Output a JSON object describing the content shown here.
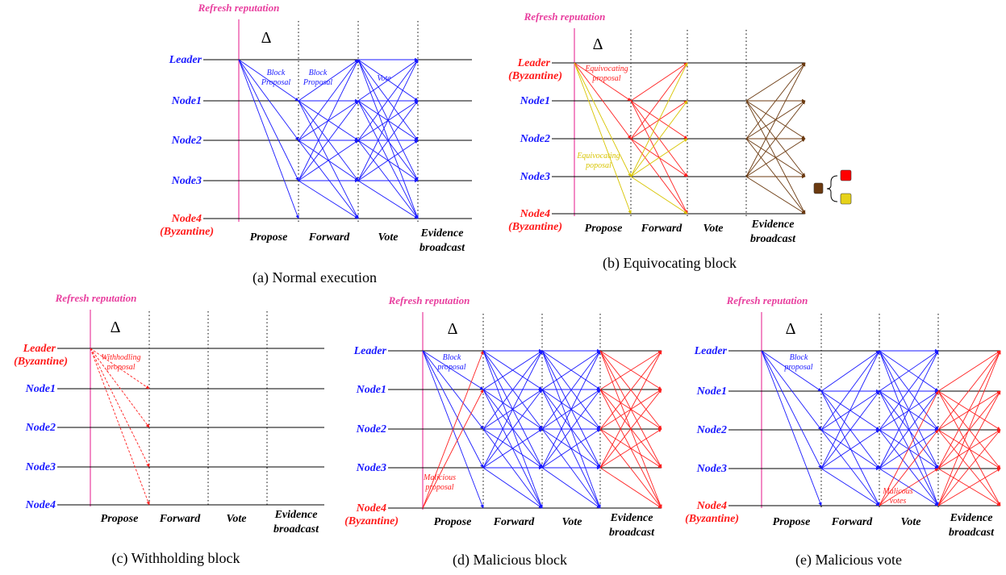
{
  "delta_symbol": "Δ",
  "refresh_label": "Refresh reputation",
  "phase_labels": {
    "propose": "Propose",
    "forward": "Forward",
    "vote": "Vote",
    "evidence_line1": "Evidence",
    "evidence_line2": "broadcast"
  },
  "colors": {
    "honest_message": "#1a1aff",
    "malicious_message": "#ff2020",
    "equivocating_message": "#d8c400",
    "evidence_message": "#6b3a10",
    "refresh_line": "#e83e9e",
    "legend_red_box": "#ff0000",
    "legend_yellow_box": "#e6d21a",
    "legend_brown_box": "#6b3a10"
  },
  "panels": [
    {
      "id": "a",
      "caption": "(a) Normal execution",
      "nodes": [
        {
          "label": "Leader",
          "byzantine": false
        },
        {
          "label": "Node1",
          "byzantine": false
        },
        {
          "label": "Node2",
          "byzantine": false
        },
        {
          "label": "Node3",
          "byzantine": false
        },
        {
          "label": "Node4",
          "byzantine": true,
          "sublabel": "(Byzantine)"
        }
      ],
      "annotations": [
        {
          "id": "block-proposal-1",
          "lines": [
            "Block",
            "Proposal"
          ],
          "color": "blue"
        },
        {
          "id": "block-proposal-2",
          "lines": [
            "Block",
            "Proposal"
          ],
          "color": "blue"
        },
        {
          "id": "vote-label",
          "lines": [
            "Vote"
          ],
          "color": "blue"
        }
      ]
    },
    {
      "id": "b",
      "caption": "(b) Equivocating block",
      "nodes": [
        {
          "label": "Leader",
          "byzantine": true,
          "sublabel": "(Byzantine)"
        },
        {
          "label": "Node1",
          "byzantine": false
        },
        {
          "label": "Node2",
          "byzantine": false
        },
        {
          "label": "Node3",
          "byzantine": false
        },
        {
          "label": "Node4",
          "byzantine": true,
          "sublabel": "(Byzantine)"
        }
      ],
      "annotations": [
        {
          "id": "equivocating-proposal-red",
          "lines": [
            "Equivocating",
            "proposal"
          ],
          "color": "red"
        },
        {
          "id": "equivocating-proposal-yellow",
          "lines": [
            "Equivocating",
            "poposal"
          ],
          "color": "yellow"
        }
      ],
      "has_legend": true
    },
    {
      "id": "c",
      "caption": "(c) Withholding block",
      "nodes": [
        {
          "label": "Leader",
          "byzantine": true,
          "sublabel": "(Byzantine)"
        },
        {
          "label": "Node1",
          "byzantine": false
        },
        {
          "label": "Node2",
          "byzantine": false
        },
        {
          "label": "Node3",
          "byzantine": false
        },
        {
          "label": "Node4",
          "byzantine": false
        }
      ],
      "annotations": [
        {
          "id": "withholding-proposal",
          "lines": [
            "Withhodling",
            "proposal"
          ],
          "color": "red"
        }
      ]
    },
    {
      "id": "d",
      "caption": "(d) Malicious block",
      "nodes": [
        {
          "label": "Leader",
          "byzantine": false
        },
        {
          "label": "Node1",
          "byzantine": false
        },
        {
          "label": "Node2",
          "byzantine": false
        },
        {
          "label": "Node3",
          "byzantine": false
        },
        {
          "label": "Node4",
          "byzantine": true,
          "sublabel": "(Byzantine)"
        }
      ],
      "annotations": [
        {
          "id": "block-proposal",
          "lines": [
            "Block",
            "proposal"
          ],
          "color": "blue"
        },
        {
          "id": "malicious-proposal",
          "lines": [
            "Malicious",
            "proposal"
          ],
          "color": "red"
        }
      ]
    },
    {
      "id": "e",
      "caption": "(e) Malicious vote",
      "nodes": [
        {
          "label": "Leader",
          "byzantine": false
        },
        {
          "label": "Node1",
          "byzantine": false
        },
        {
          "label": "Node2",
          "byzantine": false
        },
        {
          "label": "Node3",
          "byzantine": false
        },
        {
          "label": "Node4",
          "byzantine": true,
          "sublabel": "(Byzantine)"
        }
      ],
      "annotations": [
        {
          "id": "block-proposal",
          "lines": [
            "Block",
            "proposal"
          ],
          "color": "blue"
        },
        {
          "id": "malicious-votes",
          "lines": [
            "Malicous",
            "votes"
          ],
          "color": "red"
        }
      ]
    }
  ]
}
